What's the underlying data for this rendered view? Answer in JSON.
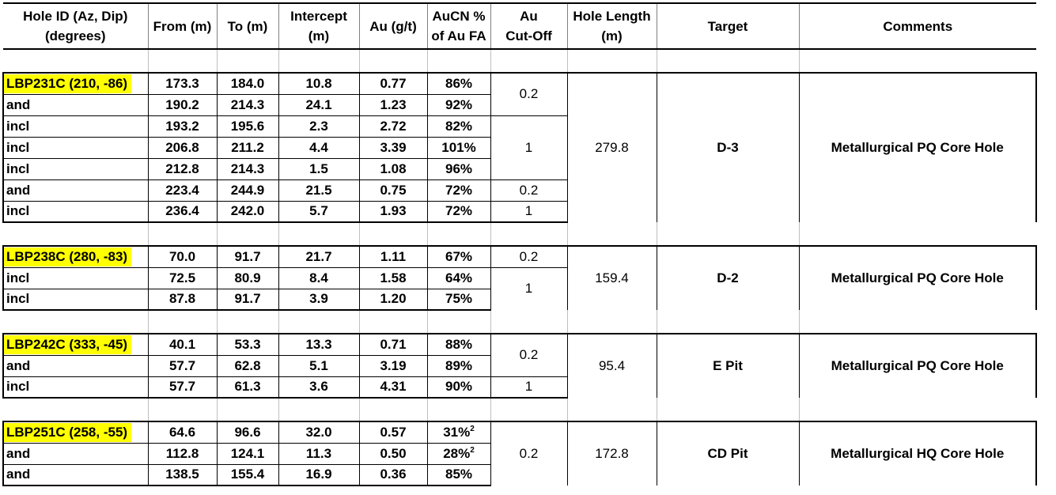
{
  "headers": {
    "hole_id": [
      "Hole ID (Az, Dip)",
      "(degrees)"
    ],
    "from": "From (m)",
    "to": "To (m)",
    "intercept": [
      "Intercept",
      "(m)"
    ],
    "au": "Au (g/t)",
    "aucn": [
      "AuCN %",
      "of Au FA"
    ],
    "cutoff": [
      "Au",
      "Cut-Off"
    ],
    "hole_length": [
      "Hole Length",
      "(m)"
    ],
    "target": "Target",
    "comments": "Comments"
  },
  "blocks": [
    {
      "rows": [
        {
          "hole": "LBP231C (210, -86)",
          "from": "173.3",
          "to": "184.0",
          "intercept": "10.8",
          "au": "0.77",
          "aucn": "86%"
        },
        {
          "hole": "and",
          "from": "190.2",
          "to": "214.3",
          "intercept": "24.1",
          "au": "1.23",
          "aucn": "92%"
        },
        {
          "hole": "incl",
          "from": "193.2",
          "to": "195.6",
          "intercept": "2.3",
          "au": "2.72",
          "aucn": "82%"
        },
        {
          "hole": "incl",
          "from": "206.8",
          "to": "211.2",
          "intercept": "4.4",
          "au": "3.39",
          "aucn": "101%"
        },
        {
          "hole": "incl",
          "from": "212.8",
          "to": "214.3",
          "intercept": "1.5",
          "au": "1.08",
          "aucn": "96%"
        },
        {
          "hole": "and",
          "from": "223.4",
          "to": "244.9",
          "intercept": "21.5",
          "au": "0.75",
          "aucn": "72%"
        },
        {
          "hole": "incl",
          "from": "236.4",
          "to": "242.0",
          "intercept": "5.7",
          "au": "1.93",
          "aucn": "72%"
        }
      ],
      "cutoffs": [
        "0.2",
        "1",
        "0.2",
        "1"
      ],
      "hole_length": "279.8",
      "target": "D-3",
      "comment": "Metallurgical PQ Core Hole"
    },
    {
      "rows": [
        {
          "hole": "LBP238C (280, -83)",
          "from": "70.0",
          "to": "91.7",
          "intercept": "21.7",
          "au": "1.11",
          "aucn": "67%"
        },
        {
          "hole": "incl",
          "from": "72.5",
          "to": "80.9",
          "intercept": "8.4",
          "au": "1.58",
          "aucn": "64%"
        },
        {
          "hole": "incl",
          "from": "87.8",
          "to": "91.7",
          "intercept": "3.9",
          "au": "1.20",
          "aucn": "75%"
        }
      ],
      "cutoffs": [
        "0.2",
        "1"
      ],
      "hole_length": "159.4",
      "target": "D-2",
      "comment": "Metallurgical PQ Core Hole"
    },
    {
      "rows": [
        {
          "hole": "LBP242C (333, -45)",
          "from": "40.1",
          "to": "53.3",
          "intercept": "13.3",
          "au": "0.71",
          "aucn": "88%"
        },
        {
          "hole": "and",
          "from": "57.7",
          "to": "62.8",
          "intercept": "5.1",
          "au": "3.19",
          "aucn": "89%"
        },
        {
          "hole": "incl",
          "from": "57.7",
          "to": "61.3",
          "intercept": "3.6",
          "au": "4.31",
          "aucn": "90%"
        }
      ],
      "cutoffs": [
        "0.2",
        "1"
      ],
      "hole_length": "95.4",
      "target": "E Pit",
      "comment": "Metallurgical PQ Core Hole"
    },
    {
      "rows": [
        {
          "hole": "LBP251C (258, -55)",
          "from": "64.6",
          "to": "96.6",
          "intercept": "32.0",
          "au": "0.57",
          "aucn": "31%",
          "aucn_note": "2"
        },
        {
          "hole": "and",
          "from": "112.8",
          "to": "124.1",
          "intercept": "11.3",
          "au": "0.50",
          "aucn": "28%",
          "aucn_note": "2"
        },
        {
          "hole": "and",
          "from": "138.5",
          "to": "155.4",
          "intercept": "16.9",
          "au": "0.36",
          "aucn": "85%"
        }
      ],
      "cutoffs": [
        "0.2"
      ],
      "hole_length": "172.8",
      "target": "CD Pit",
      "comment": "Metallurgical HQ Core Hole"
    }
  ],
  "colors": {
    "highlight": "#ffff00",
    "border": "#000000",
    "spacer_grid": "#bfbfbf"
  }
}
